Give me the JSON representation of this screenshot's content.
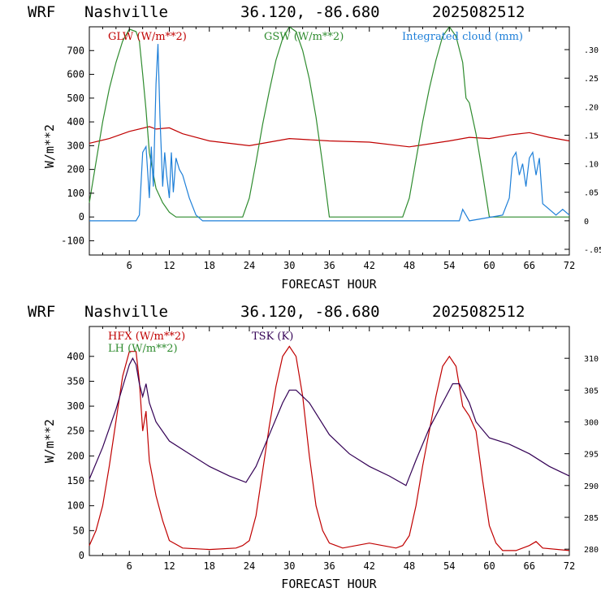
{
  "colors": {
    "red": "#c00000",
    "green": "#2e8b2e",
    "blue": "#1e7fd8",
    "purple": "#330055"
  },
  "chart_data": [
    {
      "type": "line",
      "header": {
        "model": "WRF",
        "site": "Nashville",
        "coords": "36.120, -86.680",
        "run": "2025082512"
      },
      "xlabel": "FORECAST HOUR",
      "ylabel": "W/m**2",
      "xlim": [
        0,
        72
      ],
      "ylim": [
        -160,
        800
      ],
      "ylim_right": [
        -0.06,
        0.34
      ],
      "xticks": [
        "6",
        "12",
        "18",
        "24",
        "30",
        "36",
        "42",
        "48",
        "54",
        "60",
        "66",
        "72"
      ],
      "yticks": [
        "-100",
        "0",
        "100",
        "200",
        "300",
        "400",
        "500",
        "600",
        "700"
      ],
      "yticks_right": [
        "-.05",
        "0",
        ".05",
        ".10",
        ".15",
        ".20",
        ".25",
        ".30"
      ],
      "series": [
        {
          "name": "GLW (W/m**2)",
          "color": "red",
          "axis": "left",
          "x": [
            0,
            3,
            6,
            9,
            10,
            12,
            14,
            18,
            24,
            30,
            36,
            42,
            48,
            54,
            57,
            60,
            63,
            66,
            69,
            72
          ],
          "y": [
            310,
            330,
            360,
            380,
            370,
            375,
            350,
            320,
            300,
            330,
            320,
            315,
            295,
            320,
            335,
            330,
            345,
            355,
            335,
            320
          ]
        },
        {
          "name": "GSW (W/m**2)",
          "color": "green",
          "axis": "left",
          "x": [
            0,
            1,
            2,
            3,
            4,
            5,
            6,
            7,
            7.5,
            8,
            8.5,
            9,
            10,
            11,
            12,
            13,
            23,
            24,
            25,
            26,
            27,
            28,
            29,
            30,
            31,
            32,
            33,
            34,
            35,
            36,
            47,
            48,
            49,
            50,
            51,
            52,
            53,
            54,
            55,
            56,
            56.5,
            57,
            58,
            59,
            60,
            72
          ],
          "y": [
            60,
            230,
            400,
            540,
            650,
            740,
            790,
            780,
            740,
            600,
            450,
            270,
            120,
            60,
            20,
            0,
            0,
            80,
            230,
            390,
            530,
            660,
            750,
            800,
            780,
            700,
            580,
            420,
            220,
            0,
            0,
            80,
            240,
            400,
            540,
            660,
            760,
            800,
            760,
            650,
            500,
            480,
            350,
            180,
            0,
            0
          ]
        },
        {
          "name": "Integrated cloud (mm)",
          "color": "blue",
          "axis": "right",
          "x": [
            0,
            7,
            7.5,
            8,
            8.5,
            9,
            9.3,
            9.6,
            10,
            10.3,
            10.6,
            11,
            11.3,
            11.6,
            12,
            12.3,
            12.6,
            13,
            13.5,
            14,
            15,
            16,
            17,
            55.5,
            56,
            56.5,
            57,
            62,
            63,
            63.5,
            64,
            64.5,
            65,
            65.5,
            66,
            66.5,
            67,
            67.5,
            68,
            69,
            70,
            71,
            72
          ],
          "y": [
            0,
            0,
            0.01,
            0.12,
            0.13,
            0.04,
            0.13,
            0.06,
            0.24,
            0.31,
            0.18,
            0.06,
            0.12,
            0.08,
            0.04,
            0.12,
            0.05,
            0.11,
            0.09,
            0.08,
            0.04,
            0.01,
            0,
            0,
            0.02,
            0.01,
            0,
            0.01,
            0.04,
            0.11,
            0.12,
            0.08,
            0.1,
            0.06,
            0.11,
            0.12,
            0.08,
            0.11,
            0.03,
            0.02,
            0.01,
            0.02,
            0.01
          ]
        }
      ]
    },
    {
      "type": "line",
      "header": {
        "model": "WRF",
        "site": "Nashville",
        "coords": "36.120, -86.680",
        "run": "2025082512"
      },
      "xlabel": "FORECAST HOUR",
      "ylabel": "W/m**2",
      "xlim": [
        0,
        72
      ],
      "ylim": [
        0,
        460
      ],
      "ylim_right": [
        279,
        315
      ],
      "xticks": [
        "6",
        "12",
        "18",
        "24",
        "30",
        "36",
        "42",
        "48",
        "54",
        "60",
        "66",
        "72"
      ],
      "yticks": [
        "0",
        "50",
        "100",
        "150",
        "200",
        "250",
        "300",
        "350",
        "400"
      ],
      "yticks_right": [
        "280",
        "285",
        "290",
        "295",
        "300",
        "305",
        "310"
      ],
      "series": [
        {
          "name": "HFX (W/m**2)",
          "color": "red",
          "axis": "left",
          "x": [
            0,
            1,
            2,
            3,
            4,
            5,
            6,
            7,
            7.5,
            8,
            8.5,
            9,
            10,
            11,
            12,
            14,
            18,
            22,
            23,
            24,
            25,
            26,
            27,
            28,
            29,
            30,
            31,
            32,
            33,
            34,
            35,
            36,
            37,
            38,
            42,
            46,
            47,
            48,
            49,
            50,
            51,
            52,
            53,
            54,
            55,
            56,
            57,
            58,
            59,
            60,
            61,
            62,
            64,
            66,
            67,
            68,
            72
          ],
          "y": [
            20,
            50,
            100,
            180,
            270,
            360,
            410,
            410,
            350,
            250,
            290,
            190,
            120,
            70,
            30,
            15,
            12,
            15,
            20,
            30,
            80,
            170,
            260,
            340,
            400,
            420,
            400,
            320,
            200,
            100,
            50,
            25,
            20,
            15,
            25,
            15,
            20,
            40,
            100,
            180,
            250,
            320,
            380,
            400,
            380,
            300,
            280,
            250,
            150,
            60,
            25,
            10,
            10,
            20,
            28,
            15,
            10
          ]
        },
        {
          "name": "LH  (W/m**2)",
          "color": "green",
          "axis": "left",
          "x": [
            0,
            72
          ],
          "y": [
            null,
            null
          ]
        },
        {
          "name": "TSK (K)",
          "color": "purple",
          "axis": "right",
          "x": [
            0,
            2,
            4,
            6,
            6.5,
            7,
            7.5,
            8,
            8.5,
            9,
            10,
            12,
            15,
            18,
            21,
            23.5,
            25,
            27,
            29,
            30,
            31,
            33,
            36,
            39,
            42,
            45,
            47.5,
            49,
            51,
            53,
            54.5,
            55.5,
            56.5,
            57,
            58,
            60,
            63,
            66,
            69,
            72
          ],
          "y": [
            291,
            296,
            302,
            309,
            310,
            309,
            306,
            304,
            306,
            303,
            300,
            297,
            295,
            293,
            291.5,
            290.5,
            293,
            298,
            303,
            305,
            305,
            303,
            298,
            295,
            293,
            291.5,
            290,
            294,
            299,
            303,
            306,
            306,
            304,
            303,
            300,
            297.5,
            296.5,
            295,
            293,
            291.5
          ]
        }
      ]
    }
  ]
}
